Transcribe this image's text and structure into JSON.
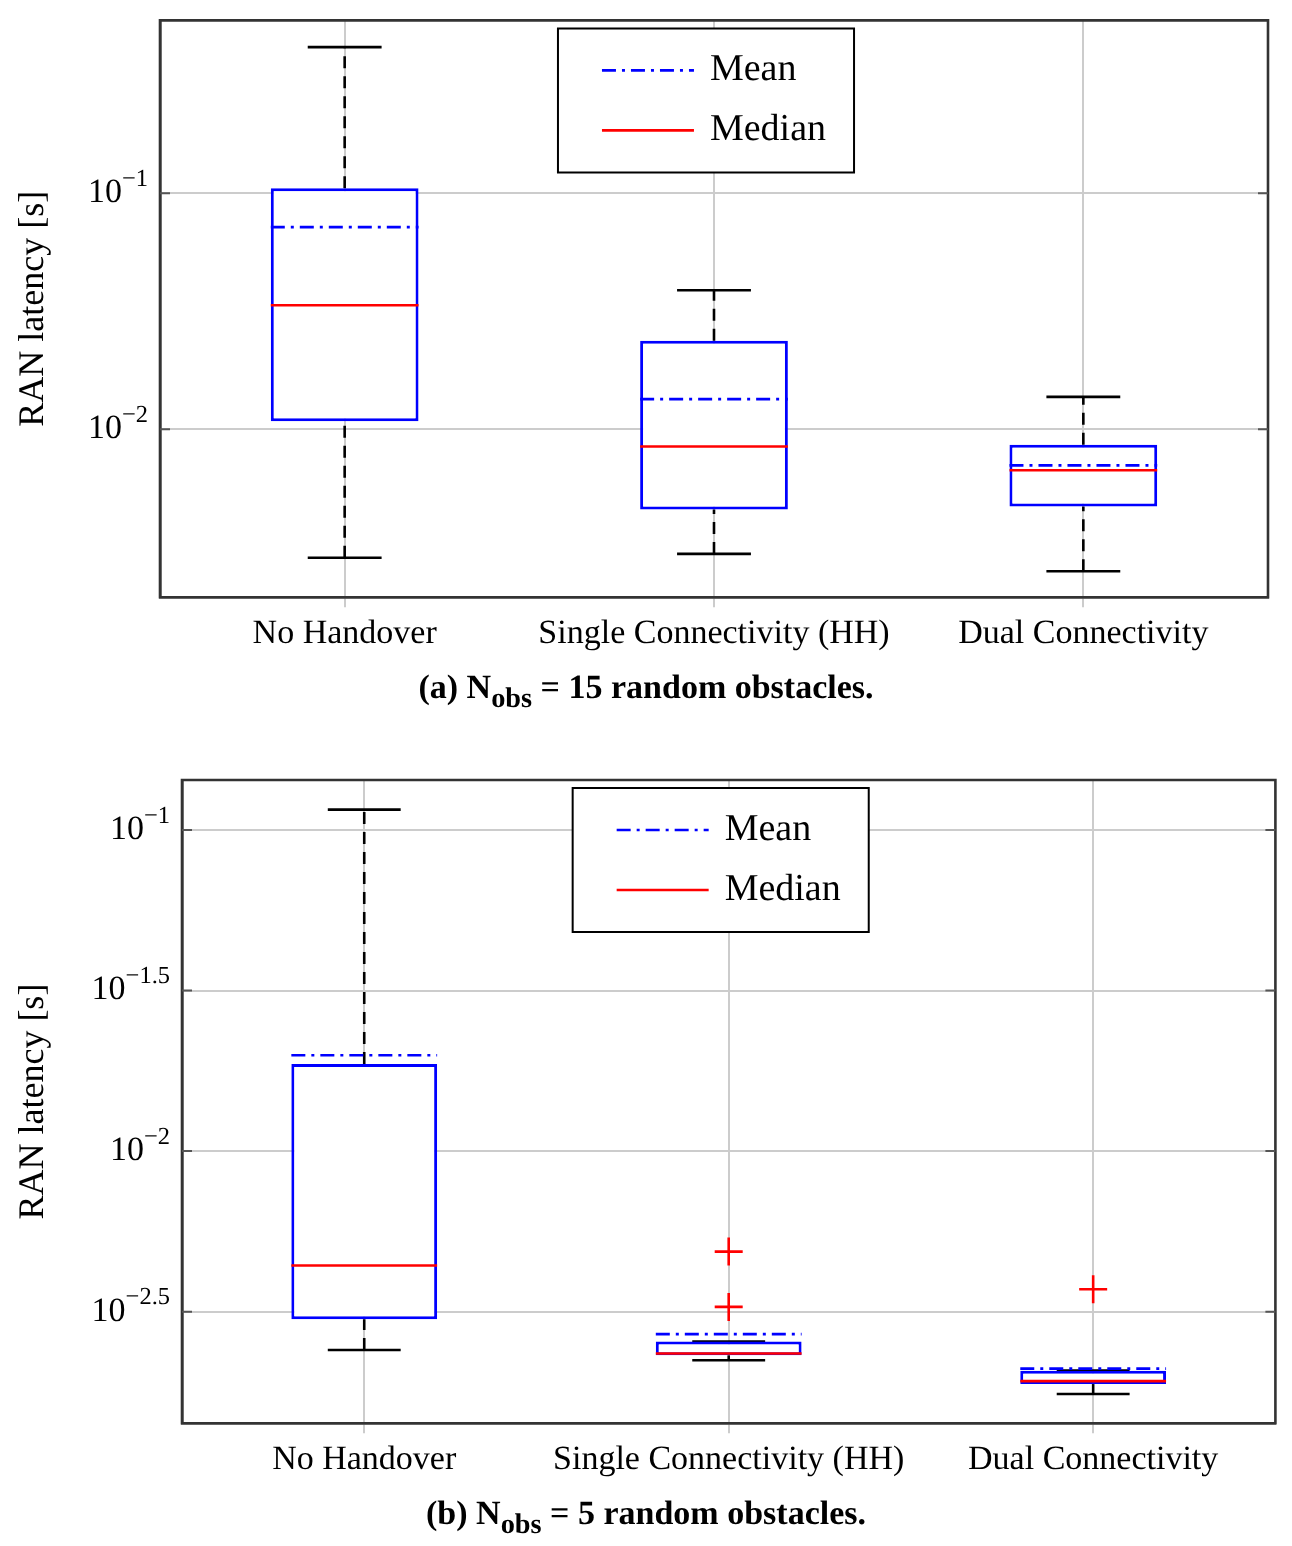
{
  "chart_data": [
    {
      "type": "box",
      "ylabel": "RAN latency [s]",
      "categories": [
        "No Handover",
        "Single Connectivity (HH)",
        "Dual Connectivity"
      ],
      "color": "#0000ff",
      "log": true,
      "grid": true,
      "legend": "top",
      "ylim": [
        0.00194,
        0.54
      ],
      "yticks": [
        {
          "value": 0.1,
          "label": "10$^{−1}$"
        },
        {
          "value": 0.01,
          "label": "10$^{−2}$"
        }
      ],
      "series": [
        {
          "name": "Mean",
          "color": "#0000ff",
          "line_style": "dashed",
          "values": [
            null,
            null,
            null
          ]
        },
        {
          "name": "Median",
          "color": "#ff0000",
          "line_style": "solid",
          "values": [
            null,
            null,
            null
          ]
        }
      ],
      "boxes": [
        {
          "low": 0.00285,
          "q1": 0.0108,
          "median": 0.0335,
          "q3": 0.105,
          "high": 0.416,
          "mean": 0.0718
        },
        {
          "low": 0.00296,
          "q1": 0.00456,
          "median": 0.00844,
          "q3": 0.0237,
          "high": 0.0388,
          "mean": 0.0134
        },
        {
          "low": 0.0025,
          "q1": 0.0047,
          "median": 0.0067,
          "q3": 0.00858,
          "high": 0.0137,
          "mean": 0.00702
        }
      ],
      "annotations": [
        "(a) N$_{obs}$ = 15 random obstacles."
      ]
    },
    {
      "type": "box",
      "ylabel": "RAN latency [s]",
      "categories": [
        "No Handover",
        "Single Connectivity (HH)",
        "Dual Connectivity"
      ],
      "color": "#0000ff",
      "log": true,
      "grid": true,
      "legend": "top",
      "ylim": [
        0.00142,
        0.143
      ],
      "yticks": [
        {
          "value": 0.1,
          "label": "10$^{−1}$"
        },
        {
          "value": 0.0316,
          "label": "10$^{−1.5}$"
        },
        {
          "value": 0.01,
          "label": "10$^{−2}$"
        },
        {
          "value": 0.00316,
          "label": "10$^{−2.5}$"
        }
      ],
      "series": [
        {
          "name": "Mean",
          "color": "#0000ff",
          "line_style": "dashed",
          "values": [
            null,
            null,
            null
          ]
        },
        {
          "name": "Median",
          "color": "#ff0000",
          "line_style": "solid",
          "values": [
            null,
            null,
            null
          ]
        }
      ],
      "boxes": [
        {
          "low": 0.0024,
          "q1": 0.00299,
          "median": 0.0044,
          "q3": 0.01866,
          "high": 0.1156,
          "mean": 0.01986
        },
        {
          "low": 0.00223,
          "q1": 0.00231,
          "median": 0.00234,
          "q3": 0.00255,
          "high": 0.00255,
          "mean": 0.00269,
          "outliers": [
            0.00486,
            0.00327
          ]
        },
        {
          "low": 0.00175,
          "q1": 0.00188,
          "median": 0.00192,
          "q3": 0.00207,
          "high": 0.00207,
          "mean": 0.0021,
          "outliers": [
            0.00371
          ]
        }
      ],
      "annotations": [
        "(b) N$_{obs}$ = 5 random obstacles."
      ]
    }
  ]
}
